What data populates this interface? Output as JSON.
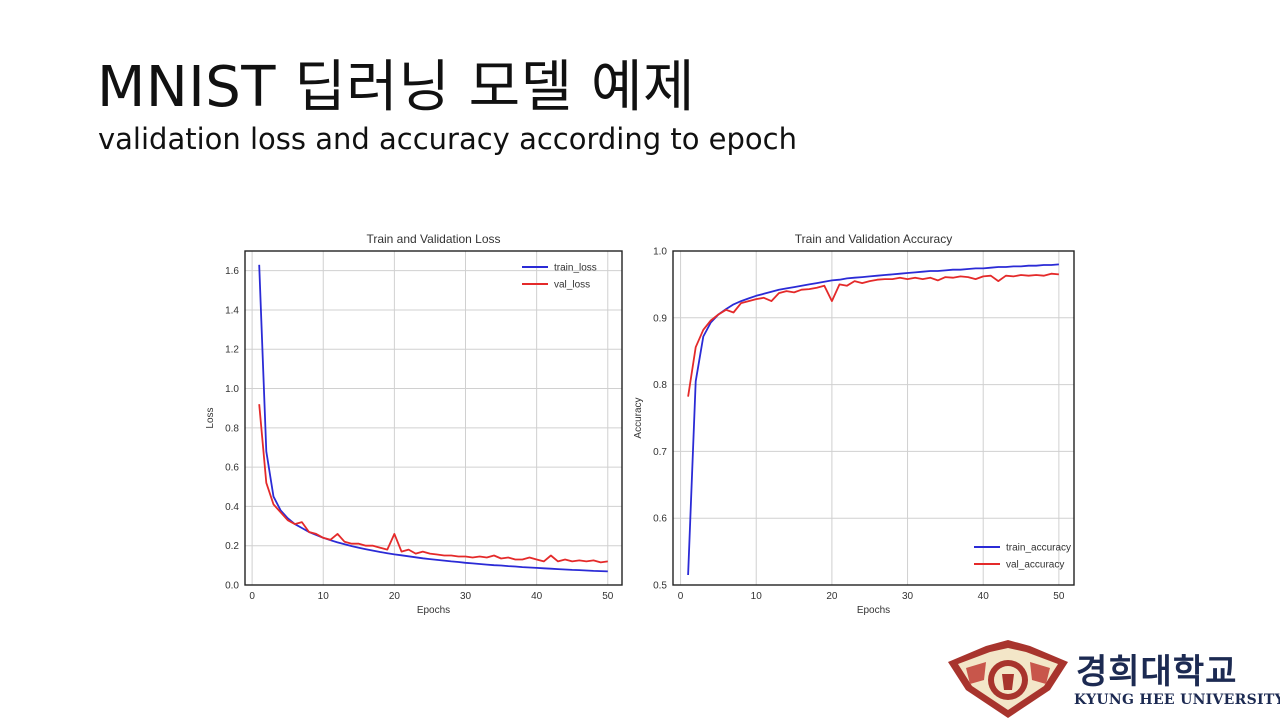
{
  "slide": {
    "title": "MNIST 딥러닝 모델 예제",
    "subtitle": "validation loss and accuracy according to epoch"
  },
  "logo": {
    "korean": "경희대학교",
    "english": "KYUNG HEE UNIVERSITY",
    "colors": {
      "seal": "#a8342d",
      "text": "#1c2a52"
    }
  },
  "chart_data": [
    {
      "type": "line",
      "title": "Train and Validation Loss",
      "xlabel": "Epochs",
      "ylabel": "Loss",
      "xlim": [
        -1,
        52
      ],
      "ylim": [
        0,
        1.7
      ],
      "xticks": [
        0,
        10,
        20,
        30,
        40,
        50
      ],
      "yticks": [
        0.0,
        0.2,
        0.4,
        0.6,
        0.8,
        1.0,
        1.2,
        1.4,
        1.6
      ],
      "grid": true,
      "legend": "top-right",
      "x": [
        1,
        2,
        3,
        4,
        5,
        6,
        7,
        8,
        9,
        10,
        11,
        12,
        13,
        14,
        15,
        16,
        17,
        18,
        19,
        20,
        21,
        22,
        23,
        24,
        25,
        26,
        27,
        28,
        29,
        30,
        31,
        32,
        33,
        34,
        35,
        36,
        37,
        38,
        39,
        40,
        41,
        42,
        43,
        44,
        45,
        46,
        47,
        48,
        49,
        50
      ],
      "series": [
        {
          "name": "train_loss",
          "color": "#2b2bd6",
          "values": [
            1.63,
            0.68,
            0.45,
            0.38,
            0.34,
            0.31,
            0.29,
            0.27,
            0.255,
            0.24,
            0.228,
            0.217,
            0.207,
            0.198,
            0.19,
            0.182,
            0.175,
            0.168,
            0.162,
            0.156,
            0.151,
            0.146,
            0.141,
            0.136,
            0.132,
            0.128,
            0.124,
            0.12,
            0.117,
            0.113,
            0.11,
            0.107,
            0.104,
            0.101,
            0.099,
            0.096,
            0.094,
            0.091,
            0.089,
            0.087,
            0.085,
            0.083,
            0.081,
            0.079,
            0.077,
            0.076,
            0.074,
            0.072,
            0.071,
            0.069
          ]
        },
        {
          "name": "val_loss",
          "color": "#e42a2a",
          "values": [
            0.92,
            0.52,
            0.41,
            0.37,
            0.33,
            0.31,
            0.32,
            0.27,
            0.26,
            0.24,
            0.23,
            0.26,
            0.22,
            0.21,
            0.21,
            0.2,
            0.2,
            0.19,
            0.18,
            0.26,
            0.17,
            0.18,
            0.16,
            0.17,
            0.16,
            0.155,
            0.15,
            0.15,
            0.145,
            0.145,
            0.14,
            0.145,
            0.14,
            0.15,
            0.135,
            0.14,
            0.13,
            0.13,
            0.14,
            0.13,
            0.12,
            0.15,
            0.12,
            0.13,
            0.12,
            0.125,
            0.12,
            0.125,
            0.115,
            0.12
          ]
        }
      ]
    },
    {
      "type": "line",
      "title": "Train and Validation Accuracy",
      "xlabel": "Epochs",
      "ylabel": "Accuracy",
      "xlim": [
        -1,
        52
      ],
      "ylim": [
        0.5,
        1.0
      ],
      "xticks": [
        0,
        10,
        20,
        30,
        40,
        50
      ],
      "yticks": [
        0.5,
        0.6,
        0.7,
        0.8,
        0.9,
        1.0
      ],
      "grid": true,
      "legend": "bottom-right",
      "x": [
        1,
        2,
        3,
        4,
        5,
        6,
        7,
        8,
        9,
        10,
        11,
        12,
        13,
        14,
        15,
        16,
        17,
        18,
        19,
        20,
        21,
        22,
        23,
        24,
        25,
        26,
        27,
        28,
        29,
        30,
        31,
        32,
        33,
        34,
        35,
        36,
        37,
        38,
        39,
        40,
        41,
        42,
        43,
        44,
        45,
        46,
        47,
        48,
        49,
        50
      ],
      "series": [
        {
          "name": "train_accuracy",
          "color": "#2b2bd6",
          "values": [
            0.515,
            0.805,
            0.872,
            0.893,
            0.905,
            0.913,
            0.92,
            0.925,
            0.929,
            0.933,
            0.936,
            0.939,
            0.942,
            0.944,
            0.946,
            0.948,
            0.95,
            0.952,
            0.954,
            0.956,
            0.957,
            0.959,
            0.96,
            0.961,
            0.962,
            0.963,
            0.964,
            0.965,
            0.966,
            0.967,
            0.968,
            0.969,
            0.97,
            0.97,
            0.971,
            0.972,
            0.972,
            0.973,
            0.974,
            0.974,
            0.975,
            0.976,
            0.976,
            0.977,
            0.977,
            0.978,
            0.978,
            0.979,
            0.979,
            0.98
          ]
        },
        {
          "name": "val_accuracy",
          "color": "#e42a2a",
          "values": [
            0.782,
            0.856,
            0.882,
            0.896,
            0.905,
            0.912,
            0.908,
            0.922,
            0.925,
            0.928,
            0.93,
            0.925,
            0.937,
            0.94,
            0.938,
            0.942,
            0.943,
            0.945,
            0.948,
            0.925,
            0.95,
            0.948,
            0.955,
            0.952,
            0.955,
            0.957,
            0.958,
            0.958,
            0.96,
            0.958,
            0.96,
            0.958,
            0.96,
            0.956,
            0.961,
            0.96,
            0.962,
            0.961,
            0.958,
            0.962,
            0.963,
            0.955,
            0.963,
            0.962,
            0.964,
            0.963,
            0.964,
            0.963,
            0.966,
            0.965
          ]
        }
      ]
    }
  ]
}
